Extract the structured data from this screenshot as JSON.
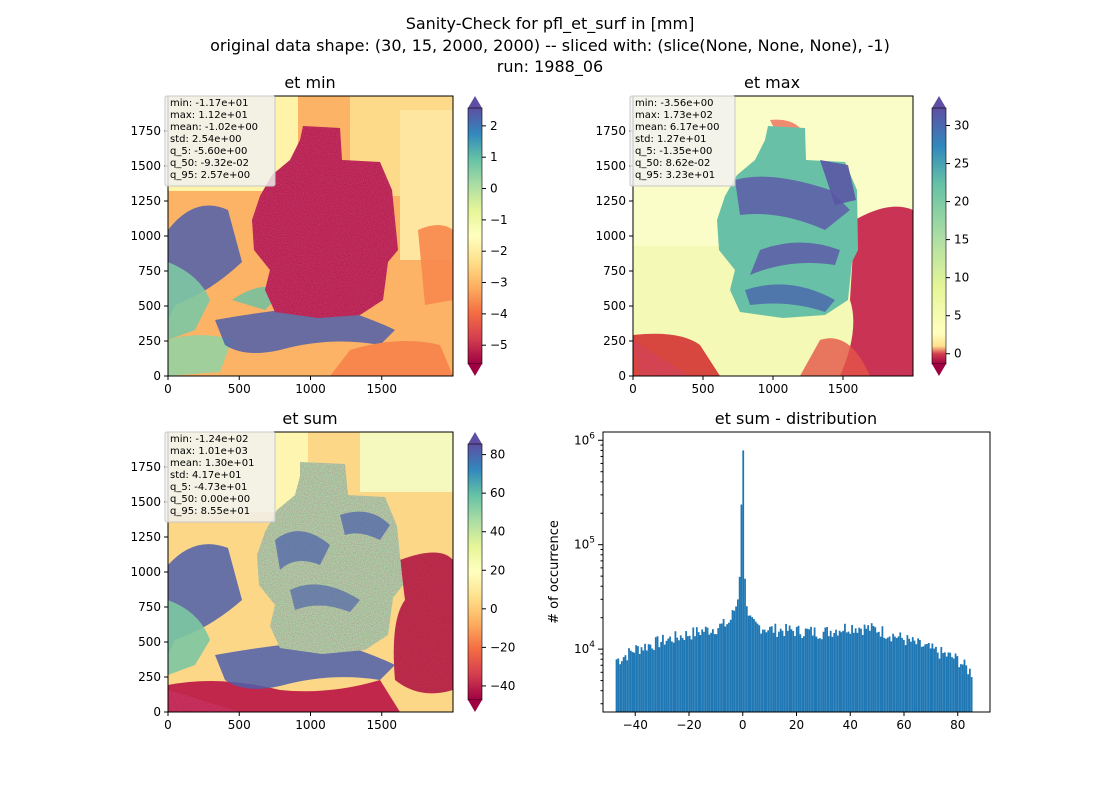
{
  "figure": {
    "title_lines": [
      "Sanity-Check for pfl_et_surf in [mm]",
      "original data shape: (30, 15, 2000, 2000) -- sliced with: (slice(None, None, None), -1)",
      "run: 1988_06"
    ]
  },
  "chart_data": [
    {
      "type": "heatmap",
      "title": "et min",
      "xticks": [
        0,
        500,
        1000,
        1500
      ],
      "yticks": [
        0,
        250,
        500,
        750,
        1000,
        1250,
        1500,
        1750
      ],
      "xlim": [
        0,
        2000
      ],
      "ylim": [
        0,
        2000
      ],
      "colormap": "Spectral",
      "colorbar": {
        "ticks": [
          2,
          1,
          0,
          -1,
          -2,
          -3,
          -4,
          -5
        ],
        "tick_labels": [
          "2",
          "1",
          "0",
          "−1",
          "−2",
          "−3",
          "−4",
          "−5"
        ],
        "range": [
          -5.6,
          2.57
        ],
        "extend": "both"
      },
      "stats_box": [
        "min: -1.17e+01",
        "max: 1.12e+01",
        "mean: -1.02e+00",
        "std: 2.54e+00",
        "q_5: -5.60e+00",
        "q_50: -9.32e-02",
        "q_95: 2.57e+00"
      ]
    },
    {
      "type": "heatmap",
      "title": "et max",
      "xticks": [
        0,
        500,
        1000,
        1500
      ],
      "yticks": [
        0,
        250,
        500,
        750,
        1000,
        1250,
        1500,
        1750
      ],
      "xlim": [
        0,
        2000
      ],
      "ylim": [
        0,
        2000
      ],
      "colormap": "Spectral",
      "colorbar": {
        "ticks": [
          30,
          25,
          20,
          15,
          10,
          5,
          0
        ],
        "tick_labels": [
          "30",
          "25",
          "20",
          "15",
          "10",
          "5",
          "0"
        ],
        "range": [
          -1.35,
          32.3
        ],
        "extend": "both"
      },
      "stats_box": [
        "min: -3.56e+00",
        "max: 1.73e+02",
        "mean: 6.17e+00",
        "std: 1.27e+01",
        "q_5: -1.35e+00",
        "q_50: 8.62e-02",
        "q_95: 3.23e+01"
      ]
    },
    {
      "type": "heatmap",
      "title": "et sum",
      "xticks": [
        0,
        500,
        1000,
        1500
      ],
      "yticks": [
        0,
        250,
        500,
        750,
        1000,
        1250,
        1500,
        1750
      ],
      "xlim": [
        0,
        2000
      ],
      "ylim": [
        0,
        2000
      ],
      "colormap": "Spectral",
      "colorbar": {
        "ticks": [
          80,
          60,
          40,
          20,
          0,
          -20,
          -40
        ],
        "tick_labels": [
          "80",
          "60",
          "40",
          "20",
          "0",
          "−20",
          "−40"
        ],
        "range": [
          -47.3,
          85.5
        ],
        "extend": "both"
      },
      "stats_box": [
        "min: -1.24e+02",
        "max: 1.01e+03",
        "mean: 1.30e+01",
        "std: 4.17e+01",
        "q_5: -4.73e+01",
        "q_50: 0.00e+00",
        "q_95: 8.55e+01"
      ]
    },
    {
      "type": "bar",
      "title": "et sum - distribution",
      "ylabel": "# of occurrence",
      "xlabel": "",
      "yscale": "log",
      "xlim": [
        -52,
        92
      ],
      "ylim": [
        2500,
        1200000
      ],
      "xticks": [
        -40,
        -20,
        0,
        20,
        40,
        60,
        80
      ],
      "xtick_labels": [
        "−40",
        "−20",
        "0",
        "20",
        "40",
        "60",
        "80"
      ],
      "yticks": [
        10000,
        100000,
        1000000
      ],
      "ytick_labels": [
        [
          "10",
          "4"
        ],
        [
          "10",
          "5"
        ],
        [
          "10",
          "6"
        ]
      ],
      "bin_range": [
        -47.3,
        85.5
      ],
      "bin_count": 200,
      "color": "#1f77b4",
      "x_midpoints": [
        -46,
        -40,
        -30,
        -20,
        -10,
        -5,
        -2,
        -1,
        0,
        1,
        2,
        5,
        10,
        20,
        30,
        40,
        50,
        60,
        70,
        80,
        85
      ],
      "counts": [
        8000,
        10000,
        12000,
        14000,
        16000,
        18000,
        28000,
        60000,
        800000,
        30000,
        19000,
        17000,
        15500,
        15000,
        14500,
        16500,
        15500,
        12500,
        10000,
        8000,
        6000
      ]
    }
  ]
}
